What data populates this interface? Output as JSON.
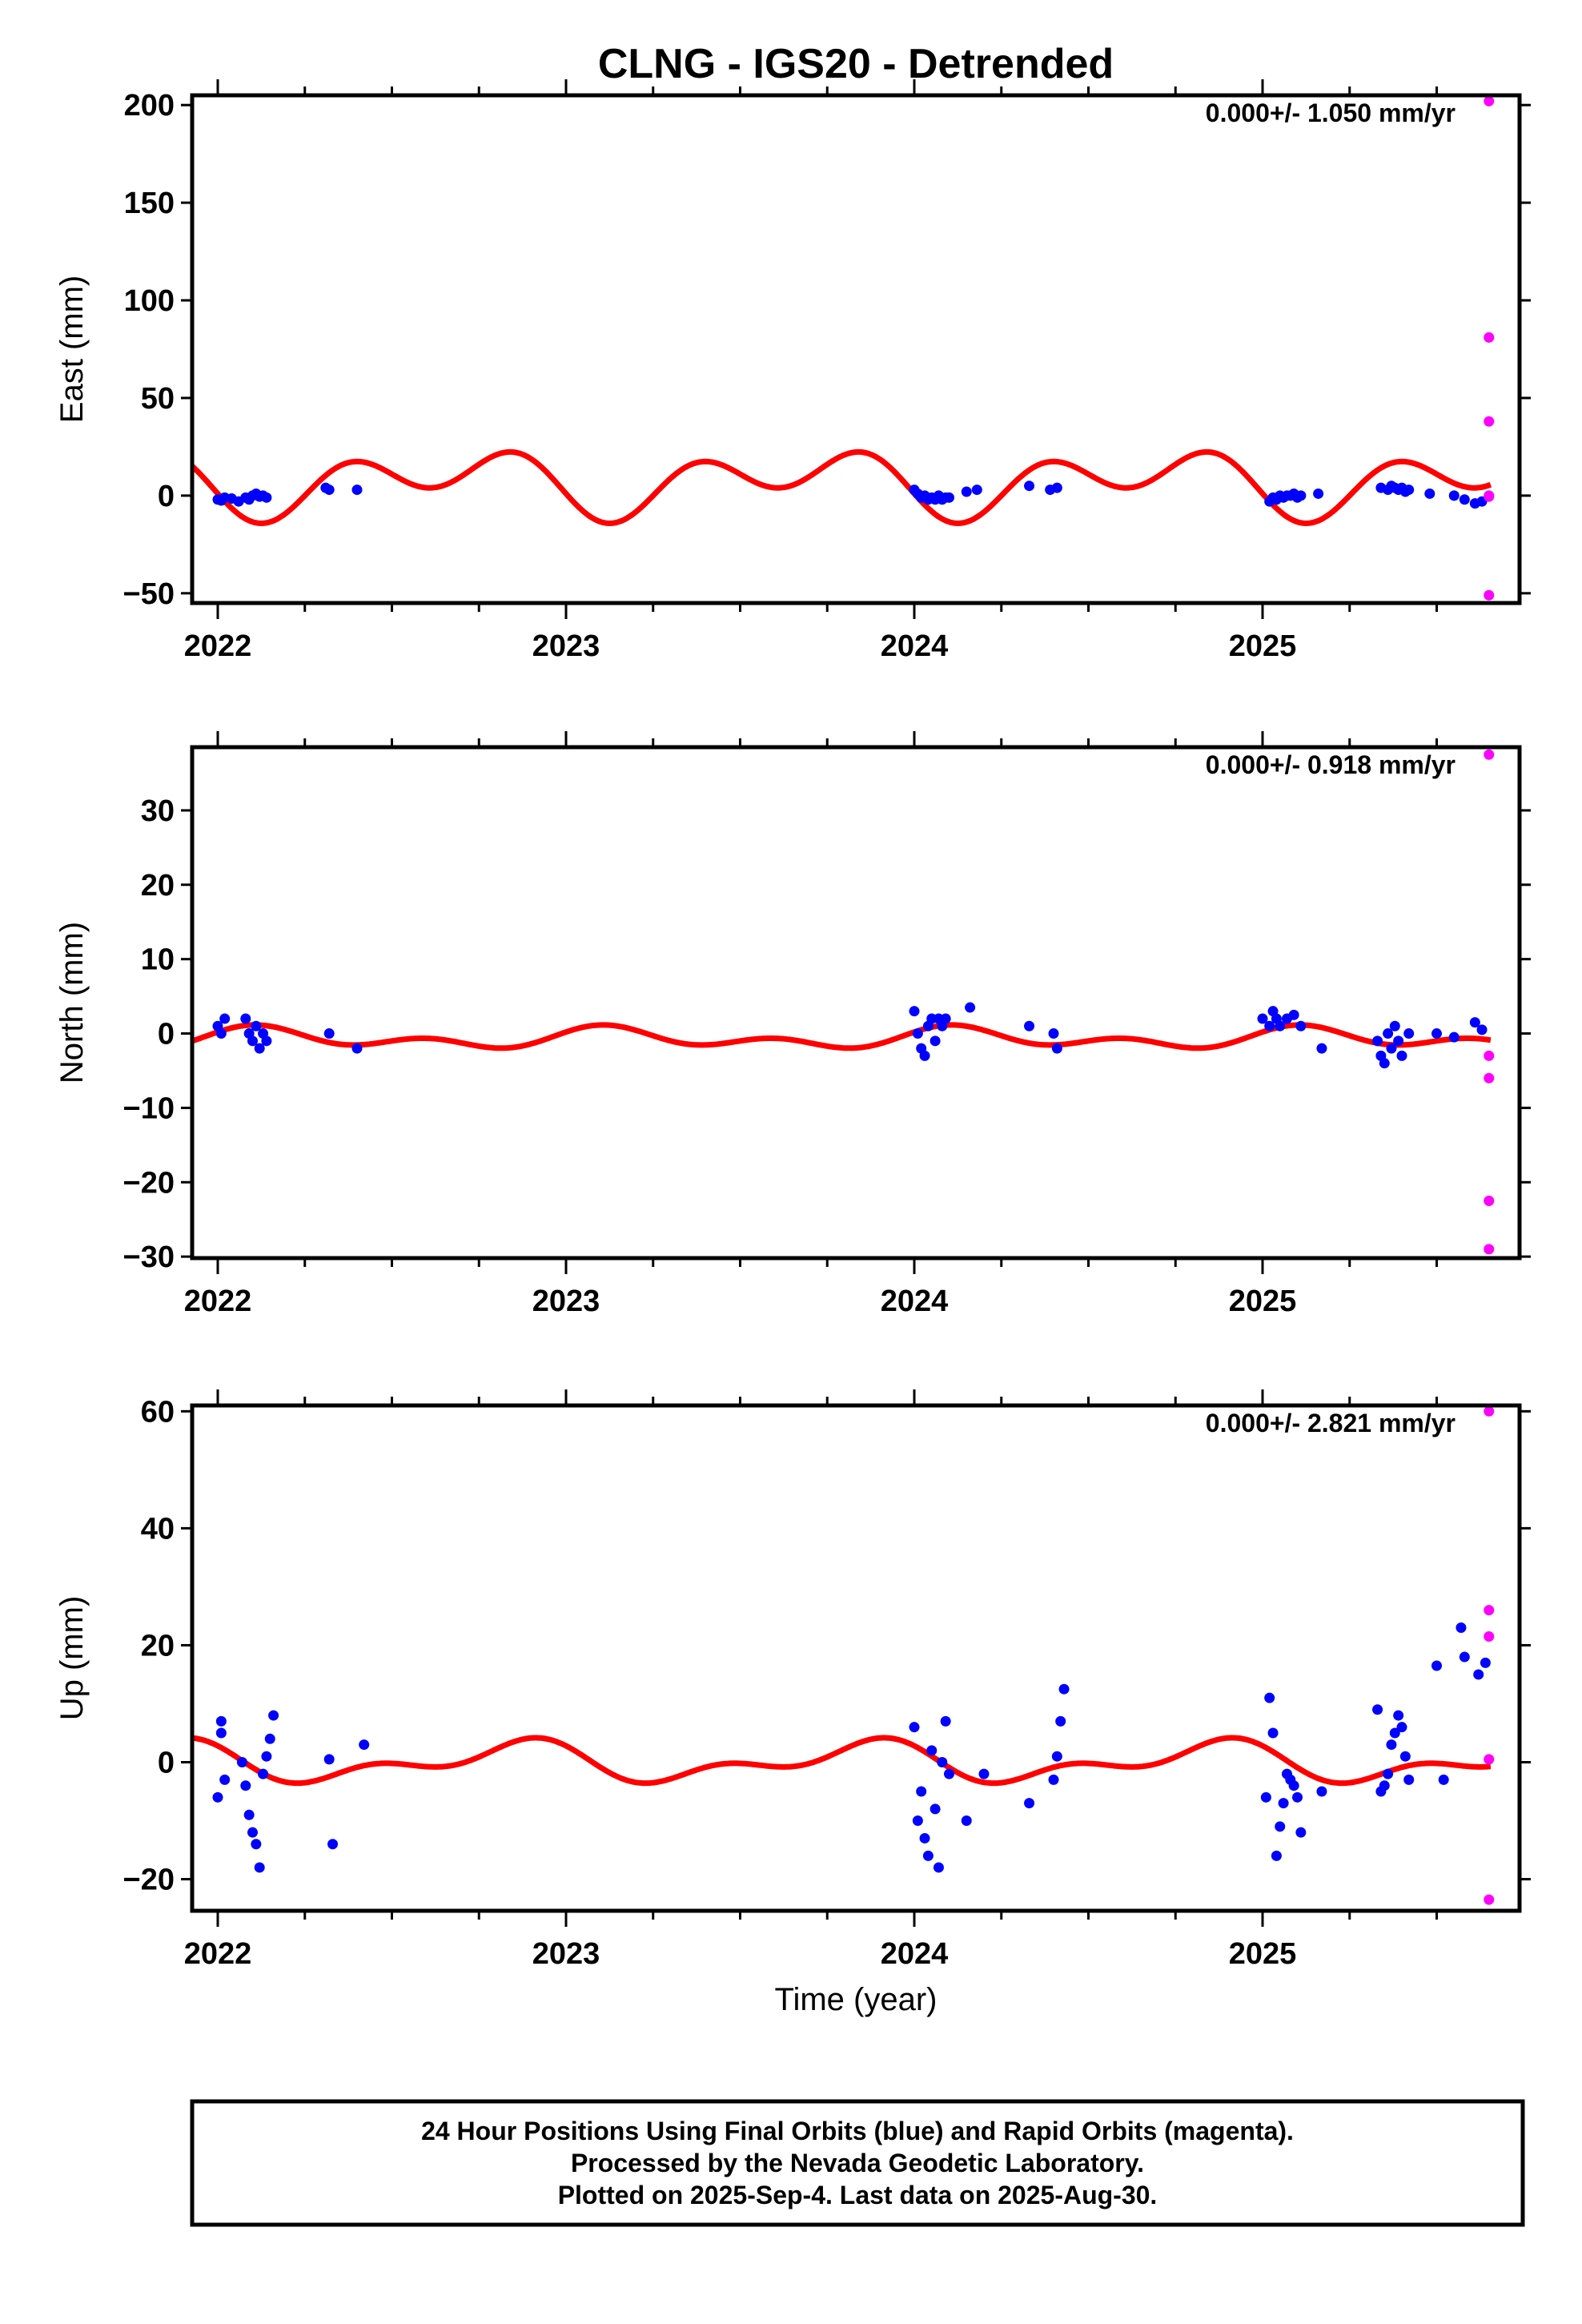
{
  "title": "CLNG - IGS20 - Detrended",
  "xlabel": "Time (year)",
  "footer": [
    "24 Hour Positions Using Final Orbits (blue) and Rapid Orbits (magenta).",
    "Processed by the Nevada Geodetic Laboratory.",
    "Plotted on 2025-Sep-4. Last data on 2025-Aug-30."
  ],
  "colors": {
    "final": "#0000ff",
    "rapid": "#ff00ff",
    "model": "#ff0000",
    "frame": "#000000"
  },
  "chart_data": [
    {
      "type": "scatter",
      "ylabel": "East (mm)",
      "rate_text": "0.000+/- 1.050 mm/yr",
      "xlim": [
        1961.0,
        2025.73
      ],
      "ylim": [
        -55,
        205
      ],
      "xticks": [
        2022,
        2023,
        2024,
        2025
      ],
      "yticks": [
        -50,
        0,
        50,
        100,
        150,
        200
      ],
      "ytick_labels": [
        "−50",
        "0",
        "50",
        "100",
        "150",
        "200"
      ],
      "model": {
        "offset": 7,
        "a1": -8,
        "b1": -5,
        "a2": -12,
        "b2": -1
      },
      "series": [
        {
          "name": "Final Orbits",
          "color": "#0000ff",
          "x": [
            2022.0,
            2022.01,
            2022.02,
            2022.04,
            2022.06,
            2022.08,
            2022.09,
            2022.1,
            2022.11,
            2022.12,
            2022.13,
            2022.14,
            2022.31,
            2022.32,
            2022.4,
            2024.0,
            2024.01,
            2024.02,
            2024.03,
            2024.04,
            2024.05,
            2024.06,
            2024.07,
            2024.08,
            2024.09,
            2024.1,
            2024.15,
            2024.18,
            2024.33,
            2024.39,
            2024.41,
            2025.02,
            2025.03,
            2025.04,
            2025.05,
            2025.06,
            2025.07,
            2025.08,
            2025.09,
            2025.1,
            2025.11,
            2025.16,
            2025.34,
            2025.36,
            2025.37,
            2025.38,
            2025.39,
            2025.4,
            2025.41,
            2025.42,
            2025.48,
            2025.55,
            2025.58,
            2025.61,
            2025.63
          ],
          "y": [
            -2,
            -2.5,
            -1,
            -1.5,
            -3,
            -1,
            -2,
            0,
            1,
            -0.5,
            0,
            -1,
            4,
            3,
            3,
            3,
            1,
            -1,
            0,
            -2,
            -1,
            -2,
            0,
            -2,
            -1,
            -1,
            2,
            3,
            5,
            3,
            4,
            -3,
            -1,
            -2,
            0,
            -1,
            0,
            0,
            1,
            -1,
            0,
            1,
            4,
            3,
            5,
            4,
            3,
            4,
            2,
            3,
            1,
            0,
            -2,
            -4,
            -3
          ]
        },
        {
          "name": "Rapid Orbits",
          "color": "#ff00ff",
          "x": [
            2025.65,
            2025.65,
            2025.65,
            2025.65,
            2025.65,
            2025.65
          ],
          "y": [
            202,
            81,
            38,
            0,
            -51,
            -0.5
          ]
        }
      ]
    },
    {
      "type": "scatter",
      "ylabel": "North (mm)",
      "rate_text": "0.000+/- 0.918 mm/yr",
      "xlim": [
        1961.0,
        2025.73
      ],
      "ylim": [
        -30.2,
        38.5
      ],
      "xticks": [
        2022,
        2023,
        2024,
        2025
      ],
      "yticks": [
        -30,
        -20,
        -10,
        0,
        10,
        20,
        30
      ],
      "ytick_labels": [
        "−30",
        "−20",
        "−10",
        "0",
        "10",
        "20",
        "30"
      ],
      "model": {
        "offset": -0.7,
        "a1": 0.7,
        "b1": 0.6,
        "a2": 0.9,
        "b2": 0.3
      },
      "series": [
        {
          "name": "Final Orbits",
          "color": "#0000ff",
          "x": [
            2022.0,
            2022.01,
            2022.02,
            2022.08,
            2022.09,
            2022.1,
            2022.11,
            2022.12,
            2022.13,
            2022.14,
            2022.32,
            2022.4,
            2024.0,
            2024.01,
            2024.02,
            2024.03,
            2024.04,
            2024.05,
            2024.06,
            2024.07,
            2024.08,
            2024.09,
            2024.16,
            2024.33,
            2024.4,
            2024.41,
            2025.0,
            2025.02,
            2025.03,
            2025.04,
            2025.05,
            2025.07,
            2025.09,
            2025.11,
            2025.17,
            2025.33,
            2025.34,
            2025.35,
            2025.36,
            2025.37,
            2025.38,
            2025.39,
            2025.4,
            2025.42,
            2025.5,
            2025.55,
            2025.61,
            2025.63
          ],
          "y": [
            1,
            0,
            2,
            2,
            0,
            -1,
            1,
            -2,
            0,
            -1,
            0,
            -2,
            3,
            0,
            -2,
            -3,
            1,
            2,
            -1,
            2,
            1,
            2,
            3.5,
            1,
            0,
            -2,
            2,
            1,
            3,
            2,
            1,
            2,
            2.5,
            1,
            -2,
            -1,
            -3,
            -4,
            0,
            -2,
            1,
            -1,
            -3,
            0,
            0,
            -0.5,
            1.5,
            0.5
          ]
        },
        {
          "name": "Rapid Orbits",
          "color": "#ff00ff",
          "x": [
            2025.65,
            2025.65,
            2025.65,
            2025.65,
            2025.65
          ],
          "y": [
            37.5,
            -3,
            -6,
            -22.5,
            -29
          ]
        }
      ]
    },
    {
      "type": "scatter",
      "ylabel": "Up (mm)",
      "rate_text": "0.000+/- 2.821 mm/yr",
      "xlim": [
        1961.0,
        2025.73
      ],
      "ylim": [
        -25.4,
        61
      ],
      "xticks": [
        2022,
        2023,
        2024,
        2025
      ],
      "yticks": [
        -20,
        0,
        20,
        40,
        60
      ],
      "ytick_labels": [
        "−20",
        "0",
        "20",
        "40",
        "60"
      ],
      "model": {
        "offset": 0,
        "a1": -2.2,
        "b1": 1.5,
        "a2": -1.3,
        "b2": 1.3
      },
      "series": [
        {
          "name": "Final Orbits",
          "color": "#0000ff",
          "x": [
            2022.0,
            2022.01,
            2022.01,
            2022.02,
            2022.07,
            2022.08,
            2022.09,
            2022.1,
            2022.11,
            2022.12,
            2022.13,
            2022.14,
            2022.15,
            2022.16,
            2022.32,
            2022.33,
            2022.42,
            2024.0,
            2024.01,
            2024.02,
            2024.03,
            2024.04,
            2024.05,
            2024.06,
            2024.07,
            2024.08,
            2024.09,
            2024.1,
            2024.15,
            2024.2,
            2024.33,
            2024.4,
            2024.41,
            2024.42,
            2024.43,
            2025.01,
            2025.02,
            2025.03,
            2025.04,
            2025.05,
            2025.06,
            2025.07,
            2025.08,
            2025.09,
            2025.1,
            2025.11,
            2025.17,
            2025.33,
            2025.34,
            2025.35,
            2025.36,
            2025.37,
            2025.38,
            2025.39,
            2025.4,
            2025.41,
            2025.42,
            2025.5,
            2025.52,
            2025.57,
            2025.58,
            2025.62,
            2025.64
          ],
          "y": [
            -6,
            7,
            5,
            -3,
            0,
            -4,
            -9,
            -12,
            -14,
            -18,
            -2,
            1,
            4,
            8,
            0.5,
            -14,
            3,
            6,
            -10,
            -5,
            -13,
            -16,
            2,
            -8,
            -18,
            0,
            7,
            -2,
            -10,
            -2,
            -7,
            -3,
            1,
            7,
            12.5,
            -6,
            11,
            5,
            -16,
            -11,
            -7,
            -2,
            -3,
            -4,
            -6,
            -12,
            -5,
            9,
            -5,
            -4,
            -2,
            3,
            5,
            8,
            6,
            1,
            -3,
            16.5,
            -3,
            23,
            18,
            15,
            17
          ]
        },
        {
          "name": "Rapid Orbits",
          "color": "#ff00ff",
          "x": [
            2025.65,
            2025.65,
            2025.65,
            2025.65,
            2025.65
          ],
          "y": [
            60,
            26,
            21.5,
            0.5,
            -23.5
          ]
        }
      ]
    }
  ]
}
